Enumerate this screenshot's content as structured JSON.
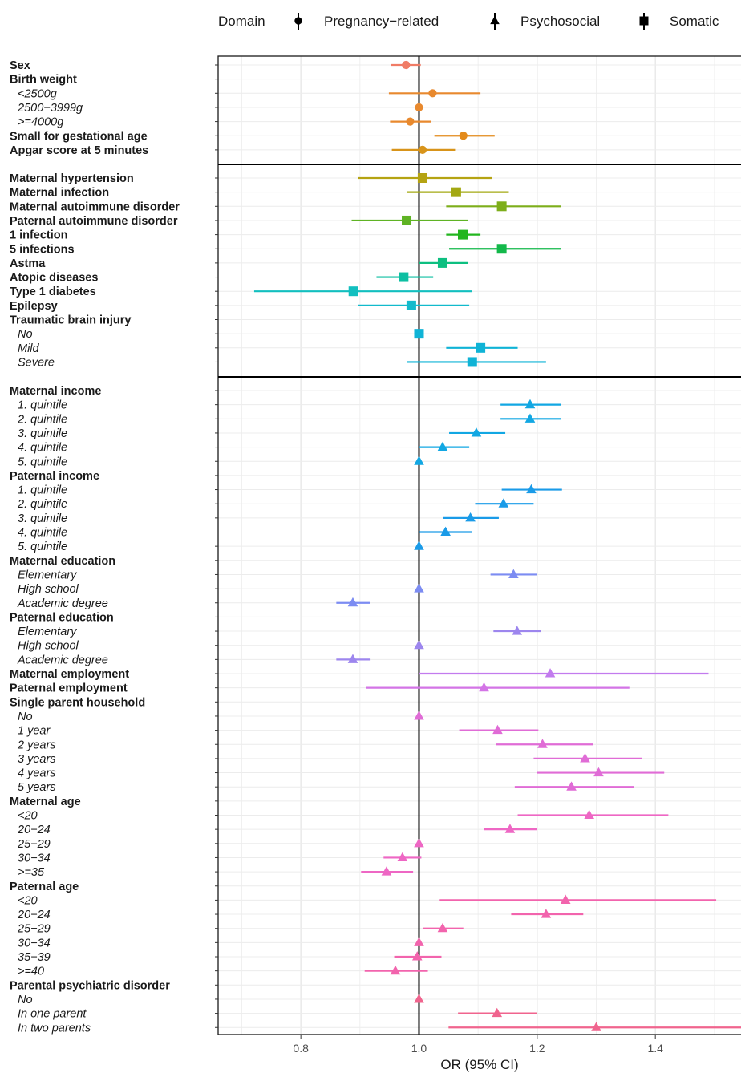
{
  "legend": {
    "title": "Domain",
    "items": [
      {
        "label": "Pregnancy−related",
        "shape": "circle"
      },
      {
        "label": "Psychosocial",
        "shape": "triangle"
      },
      {
        "label": "Somatic",
        "shape": "square"
      }
    ]
  },
  "chart_data": {
    "type": "forest",
    "xlabel": "OR (95% CI)",
    "xlim": [
      0.66,
      1.545
    ],
    "xticks": [
      0.8,
      1.0,
      1.2,
      1.4
    ],
    "xtick_labels": [
      "0.8",
      "1.0",
      "1.2",
      "1.4"
    ],
    "reference_line": 1.0,
    "grid": true,
    "legend_position": "top",
    "panels": [
      {
        "domain": "Pregnancy-related",
        "rows": [
          {
            "label": "Sex",
            "style": "head",
            "or": 0.978,
            "lo": 0.953,
            "hi": 1.003,
            "color": "#F07C66"
          },
          {
            "label": "Birth weight",
            "style": "head"
          },
          {
            "label": "<2500g",
            "style": "sub",
            "or": 1.023,
            "lo": 0.949,
            "hi": 1.104,
            "color": "#E8892E"
          },
          {
            "label": "2500−3999g",
            "style": "sub",
            "or": 1.0,
            "lo": 1.0,
            "hi": 1.0,
            "color": "#E8892E"
          },
          {
            "label": ">=4000g",
            "style": "sub",
            "or": 0.985,
            "lo": 0.951,
            "hi": 1.021,
            "color": "#E8892E"
          },
          {
            "label": "Small for gestational age",
            "style": "head",
            "or": 1.075,
            "lo": 1.026,
            "hi": 1.128,
            "color": "#E38A1A"
          },
          {
            "label": "Apgar score at 5 minutes",
            "style": "head",
            "or": 1.006,
            "lo": 0.954,
            "hi": 1.061,
            "color": "#D8941A"
          }
        ]
      },
      {
        "domain": "Somatic",
        "rows": [
          {
            "label": "Maternal hypertension",
            "style": "head",
            "or": 1.006,
            "lo": 0.897,
            "hi": 1.124,
            "color": "#B5A312"
          },
          {
            "label": "Maternal infection",
            "style": "head",
            "or": 1.063,
            "lo": 0.98,
            "hi": 1.152,
            "color": "#A3A812"
          },
          {
            "label": "Maternal autoimmune disorder",
            "style": "head",
            "or": 1.14,
            "lo": 1.046,
            "hi": 1.24,
            "color": "#7DAE1A"
          },
          {
            "label": "Paternal autoimmune disorder",
            "style": "head",
            "or": 0.979,
            "lo": 0.886,
            "hi": 1.083,
            "color": "#5FB324"
          },
          {
            "label": "1 infection",
            "style": "head",
            "or": 1.074,
            "lo": 1.046,
            "hi": 1.104,
            "color": "#22B51E"
          },
          {
            "label": "5 infections",
            "style": "head",
            "or": 1.14,
            "lo": 1.051,
            "hi": 1.24,
            "color": "#13B84A"
          },
          {
            "label": "Astma",
            "style": "head",
            "or": 1.04,
            "lo": 1.0,
            "hi": 1.083,
            "color": "#0DBF80"
          },
          {
            "label": "Atopic diseases",
            "style": "head",
            "or": 0.974,
            "lo": 0.928,
            "hi": 1.024,
            "color": "#0DBFA2"
          },
          {
            "label": "Type 1 diabetes",
            "style": "head",
            "or": 0.889,
            "lo": 0.721,
            "hi": 1.09,
            "color": "#12BFBF"
          },
          {
            "label": "Epilepsy",
            "style": "head",
            "or": 0.987,
            "lo": 0.897,
            "hi": 1.085,
            "color": "#12BACC"
          },
          {
            "label": "Traumatic brain injury",
            "style": "head"
          },
          {
            "label": "No",
            "style": "sub",
            "or": 1.0,
            "lo": 1.0,
            "hi": 1.0,
            "color": "#0FB3D6"
          },
          {
            "label": "Mild",
            "style": "sub",
            "or": 1.104,
            "lo": 1.046,
            "hi": 1.167,
            "color": "#0FB3D6"
          },
          {
            "label": "Severe",
            "style": "sub",
            "or": 1.09,
            "lo": 0.98,
            "hi": 1.215,
            "color": "#0FB3D6"
          }
        ]
      },
      {
        "domain": "Psychosocial",
        "rows": [
          {
            "label": "Maternal income",
            "style": "head"
          },
          {
            "label": "1. quintile",
            "style": "sub",
            "or": 1.188,
            "lo": 1.138,
            "hi": 1.24,
            "color": "#12A7E3"
          },
          {
            "label": "2. quintile",
            "style": "sub",
            "or": 1.188,
            "lo": 1.138,
            "hi": 1.24,
            "color": "#12A7E3"
          },
          {
            "label": "3. quintile",
            "style": "sub",
            "or": 1.097,
            "lo": 1.051,
            "hi": 1.146,
            "color": "#12A7E3"
          },
          {
            "label": "4. quintile",
            "style": "sub",
            "or": 1.04,
            "lo": 1.0,
            "hi": 1.085,
            "color": "#12A7E3"
          },
          {
            "label": "5. quintile",
            "style": "sub",
            "or": 1.0,
            "lo": 1.0,
            "hi": 1.0,
            "color": "#12A7E3"
          },
          {
            "label": "Paternal income",
            "style": "head"
          },
          {
            "label": "1. quintile",
            "style": "sub",
            "or": 1.19,
            "lo": 1.14,
            "hi": 1.242,
            "color": "#1A9BE8"
          },
          {
            "label": "2. quintile",
            "style": "sub",
            "or": 1.143,
            "lo": 1.095,
            "hi": 1.194,
            "color": "#1A9BE8"
          },
          {
            "label": "3. quintile",
            "style": "sub",
            "or": 1.087,
            "lo": 1.041,
            "hi": 1.135,
            "color": "#1A9BE8"
          },
          {
            "label": "4. quintile",
            "style": "sub",
            "or": 1.045,
            "lo": 1.001,
            "hi": 1.09,
            "color": "#1A9BE8"
          },
          {
            "label": "5. quintile",
            "style": "sub",
            "or": 1.0,
            "lo": 1.0,
            "hi": 1.0,
            "color": "#1A9BE8"
          },
          {
            "label": "Maternal education",
            "style": "head"
          },
          {
            "label": "Elementary",
            "style": "sub",
            "or": 1.16,
            "lo": 1.121,
            "hi": 1.2,
            "color": "#7C8CF2"
          },
          {
            "label": "High school",
            "style": "sub",
            "or": 1.0,
            "lo": 1.0,
            "hi": 1.0,
            "color": "#7C8CF2"
          },
          {
            "label": "Academic degree",
            "style": "sub",
            "or": 0.888,
            "lo": 0.86,
            "hi": 0.917,
            "color": "#7C8CF2"
          },
          {
            "label": "Paternal education",
            "style": "head"
          },
          {
            "label": "Elementary",
            "style": "sub",
            "or": 1.166,
            "lo": 1.126,
            "hi": 1.207,
            "color": "#9D86EE"
          },
          {
            "label": "High school",
            "style": "sub",
            "or": 1.0,
            "lo": 1.0,
            "hi": 1.0,
            "color": "#9D86EE"
          },
          {
            "label": "Academic degree",
            "style": "sub",
            "or": 0.888,
            "lo": 0.86,
            "hi": 0.918,
            "color": "#9D86EE"
          },
          {
            "label": "Maternal employment",
            "style": "head",
            "or": 1.222,
            "lo": 1.0,
            "hi": 1.49,
            "color": "#C27BEE"
          },
          {
            "label": "Paternal employment",
            "style": "head",
            "or": 1.11,
            "lo": 0.91,
            "hi": 1.356,
            "color": "#D374E6"
          },
          {
            "label": "Single parent household",
            "style": "head"
          },
          {
            "label": "No",
            "style": "sub",
            "or": 1.0,
            "lo": 1.0,
            "hi": 1.0,
            "color": "#E06CD6"
          },
          {
            "label": "1 year",
            "style": "sub",
            "or": 1.133,
            "lo": 1.068,
            "hi": 1.202,
            "color": "#E06CD6"
          },
          {
            "label": "2 years",
            "style": "sub",
            "or": 1.209,
            "lo": 1.13,
            "hi": 1.295,
            "color": "#E06CD6"
          },
          {
            "label": "3 years",
            "style": "sub",
            "or": 1.281,
            "lo": 1.194,
            "hi": 1.377,
            "color": "#E06CD6"
          },
          {
            "label": "4 years",
            "style": "sub",
            "or": 1.304,
            "lo": 1.2,
            "hi": 1.415,
            "color": "#E06CD6"
          },
          {
            "label": "5 years",
            "style": "sub",
            "or": 1.258,
            "lo": 1.162,
            "hi": 1.364,
            "color": "#E06CD6"
          },
          {
            "label": "Maternal age",
            "style": "head"
          },
          {
            "label": "<20",
            "style": "sub",
            "or": 1.288,
            "lo": 1.167,
            "hi": 1.422,
            "color": "#EE67C4"
          },
          {
            "label": "20−24",
            "style": "sub",
            "or": 1.154,
            "lo": 1.11,
            "hi": 1.2,
            "color": "#EE67C4"
          },
          {
            "label": "25−29",
            "style": "sub",
            "or": 1.0,
            "lo": 1.0,
            "hi": 1.0,
            "color": "#EE67C4"
          },
          {
            "label": "30−34",
            "style": "sub",
            "or": 0.972,
            "lo": 0.94,
            "hi": 1.004,
            "color": "#EE67C4"
          },
          {
            "label": ">=35",
            "style": "sub",
            "or": 0.945,
            "lo": 0.902,
            "hi": 0.99,
            "color": "#EE67C4"
          },
          {
            "label": "Paternal age",
            "style": "head"
          },
          {
            "label": "<20",
            "style": "sub",
            "or": 1.248,
            "lo": 1.035,
            "hi": 1.503,
            "color": "#F264AD"
          },
          {
            "label": "20−24",
            "style": "sub",
            "or": 1.215,
            "lo": 1.156,
            "hi": 1.278,
            "color": "#F264AD"
          },
          {
            "label": "25−29",
            "style": "sub",
            "or": 1.04,
            "lo": 1.007,
            "hi": 1.075,
            "color": "#F264AD"
          },
          {
            "label": "30−34",
            "style": "sub",
            "or": 1.0,
            "lo": 1.0,
            "hi": 1.0,
            "color": "#F264AD"
          },
          {
            "label": "35−39",
            "style": "sub",
            "or": 0.997,
            "lo": 0.958,
            "hi": 1.038,
            "color": "#F264AD"
          },
          {
            "label": ">=40",
            "style": "sub",
            "or": 0.96,
            "lo": 0.908,
            "hi": 1.015,
            "color": "#F264AD"
          },
          {
            "label": "Parental psychiatric disorder",
            "style": "head"
          },
          {
            "label": "No",
            "style": "sub",
            "or": 1.0,
            "lo": 1.0,
            "hi": 1.0,
            "color": "#F0648E"
          },
          {
            "label": "In one parent",
            "style": "sub",
            "or": 1.132,
            "lo": 1.066,
            "hi": 1.2,
            "color": "#F0648E"
          },
          {
            "label": "In two parents",
            "style": "sub",
            "or": 1.3,
            "lo": 1.05,
            "hi": 1.61,
            "color": "#F0648E"
          }
        ]
      }
    ]
  }
}
